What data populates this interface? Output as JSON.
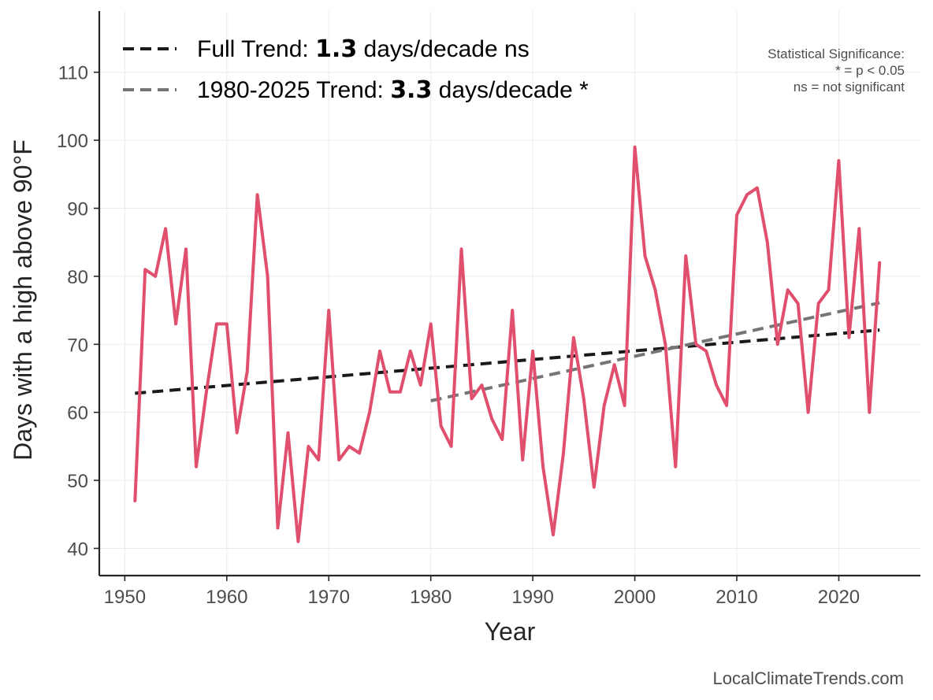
{
  "chart_data": {
    "type": "line",
    "xlabel": "Year",
    "ylabel": "Days with a high above 90°F",
    "xlim": [
      1947.5,
      2028
    ],
    "ylim": [
      36,
      119
    ],
    "x_ticks": [
      1950,
      1960,
      1970,
      1980,
      1990,
      2000,
      2010,
      2020
    ],
    "y_ticks": [
      40,
      50,
      60,
      70,
      80,
      90,
      100,
      110
    ],
    "grid": true,
    "series": [
      {
        "name": "Days above 90°F",
        "color": "#e0506e",
        "x": [
          1951,
          1952,
          1953,
          1954,
          1955,
          1956,
          1957,
          1958,
          1959,
          1960,
          1961,
          1962,
          1963,
          1964,
          1965,
          1966,
          1967,
          1968,
          1969,
          1970,
          1971,
          1972,
          1973,
          1974,
          1975,
          1976,
          1977,
          1978,
          1979,
          1980,
          1981,
          1982,
          1983,
          1984,
          1985,
          1986,
          1987,
          1988,
          1989,
          1990,
          1991,
          1992,
          1993,
          1994,
          1995,
          1996,
          1997,
          1998,
          1999,
          2000,
          2001,
          2002,
          2003,
          2004,
          2005,
          2006,
          2007,
          2008,
          2009,
          2010,
          2011,
          2012,
          2013,
          2014,
          2015,
          2016,
          2017,
          2018,
          2019,
          2020,
          2021,
          2022,
          2023,
          2024
        ],
        "values": [
          47,
          81,
          80,
          87,
          73,
          84,
          52,
          63,
          73,
          73,
          57,
          66,
          92,
          80,
          43,
          57,
          41,
          55,
          53,
          75,
          53,
          55,
          54,
          60,
          69,
          63,
          63,
          69,
          64,
          73,
          58,
          55,
          84,
          62,
          64,
          59,
          56,
          75,
          53,
          69,
          52,
          42,
          54,
          71,
          62,
          49,
          61,
          67,
          61,
          99,
          83,
          78,
          70,
          52,
          83,
          70,
          69,
          64,
          61,
          89,
          92,
          93,
          85,
          70,
          78,
          76,
          60,
          76,
          78,
          97,
          71,
          87,
          60,
          82
        ]
      }
    ],
    "trends": [
      {
        "name": "Full Trend",
        "x": [
          1951,
          2024
        ],
        "y": [
          62.8,
          72.1
        ],
        "color": "#1a1a1a"
      },
      {
        "name": "1980-2025 Trend",
        "x": [
          1980,
          2024
        ],
        "y": [
          61.7,
          76.1
        ],
        "color": "#757575"
      }
    ],
    "legend": {
      "placement": "top-left",
      "items": [
        {
          "prefix": "Full Trend: ",
          "value": "1.3",
          "suffix": " days/decade ns",
          "color": "#1a1a1a"
        },
        {
          "prefix": "1980-2025 Trend: ",
          "value": "3.3",
          "suffix": " days/decade *",
          "color": "#757575"
        }
      ]
    },
    "significance_note": [
      "Statistical Significance:",
      "* = p < 0.05",
      "ns = not significant"
    ],
    "credit": "LocalClimateTrends.com"
  }
}
